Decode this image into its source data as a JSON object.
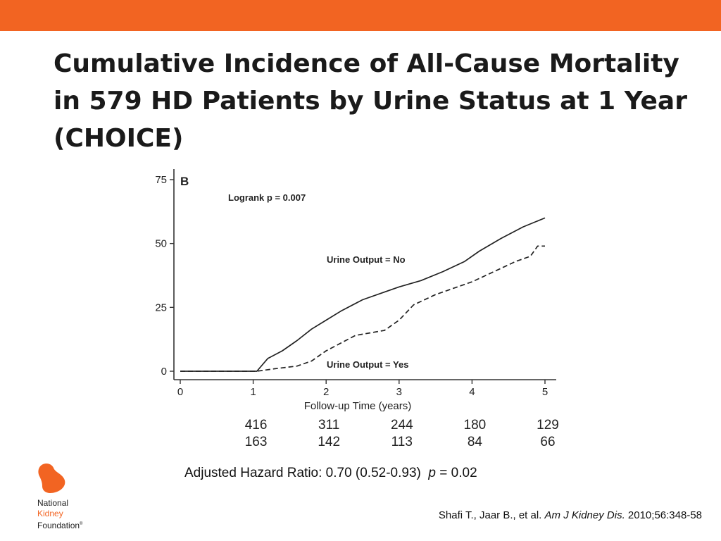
{
  "title": {
    "line1": "Cumulative Incidence of All-Cause Mortality",
    "line2": "in 579 HD Patients by Urine Status at 1 Year",
    "line3": "(CHOICE)"
  },
  "hazard": {
    "prefix": "Adjusted Hazard Ratio: 0.70 (0.52-0.93)",
    "p_label": "p",
    "p_value": " = 0.02"
  },
  "citation": {
    "authors": "Shafi T., Jaar B., et al. ",
    "journal": "Am J Kidney Dis.",
    "details": " 2010;56:348-58"
  },
  "logo": {
    "line1": "National",
    "line2": "Kidney",
    "line3": "Foundation",
    "mark": "®"
  },
  "colors": {
    "accent": "#f26422",
    "text": "#1a1a1a"
  },
  "chart_data": {
    "type": "line",
    "panel_label": "B",
    "annotation": "Logrank p = 0.007",
    "xlabel": "Follow-up Time (years)",
    "ylabel": "",
    "xlim": [
      0,
      5
    ],
    "ylim": [
      0,
      75
    ],
    "x_ticks": [
      0,
      1,
      2,
      3,
      4,
      5
    ],
    "y_ticks": [
      0,
      25,
      50,
      75
    ],
    "grid": false,
    "series": [
      {
        "name": "Urine Output = No",
        "style": "solid",
        "points": [
          [
            0,
            0
          ],
          [
            1.05,
            0
          ],
          [
            1.2,
            5
          ],
          [
            1.4,
            8
          ],
          [
            1.6,
            12
          ],
          [
            1.8,
            16.5
          ],
          [
            2,
            20
          ],
          [
            2.2,
            23.5
          ],
          [
            2.5,
            28
          ],
          [
            2.8,
            31
          ],
          [
            3,
            33
          ],
          [
            3.3,
            35.5
          ],
          [
            3.6,
            39
          ],
          [
            3.9,
            43
          ],
          [
            4.1,
            47
          ],
          [
            4.4,
            52
          ],
          [
            4.7,
            56.5
          ],
          [
            5,
            60
          ]
        ]
      },
      {
        "name": "Urine Output = Yes",
        "style": "dashed",
        "points": [
          [
            0,
            0
          ],
          [
            1.05,
            0
          ],
          [
            1.3,
            1
          ],
          [
            1.6,
            2
          ],
          [
            1.8,
            4
          ],
          [
            2,
            8
          ],
          [
            2.2,
            11
          ],
          [
            2.4,
            14
          ],
          [
            2.6,
            15
          ],
          [
            2.8,
            16
          ],
          [
            3,
            20
          ],
          [
            3.2,
            26
          ],
          [
            3.5,
            30
          ],
          [
            3.8,
            33
          ],
          [
            4,
            35
          ],
          [
            4.3,
            39
          ],
          [
            4.6,
            43
          ],
          [
            4.8,
            45
          ],
          [
            4.9,
            49
          ],
          [
            5,
            49
          ]
        ]
      }
    ],
    "at_risk": [
      {
        "x": 1,
        "values": [
          "416",
          "163"
        ]
      },
      {
        "x": 2,
        "values": [
          "311",
          "142"
        ]
      },
      {
        "x": 3,
        "values": [
          "244",
          "113"
        ]
      },
      {
        "x": 4,
        "values": [
          "180",
          "84"
        ]
      },
      {
        "x": 5,
        "values": [
          "129",
          "66"
        ]
      }
    ]
  }
}
